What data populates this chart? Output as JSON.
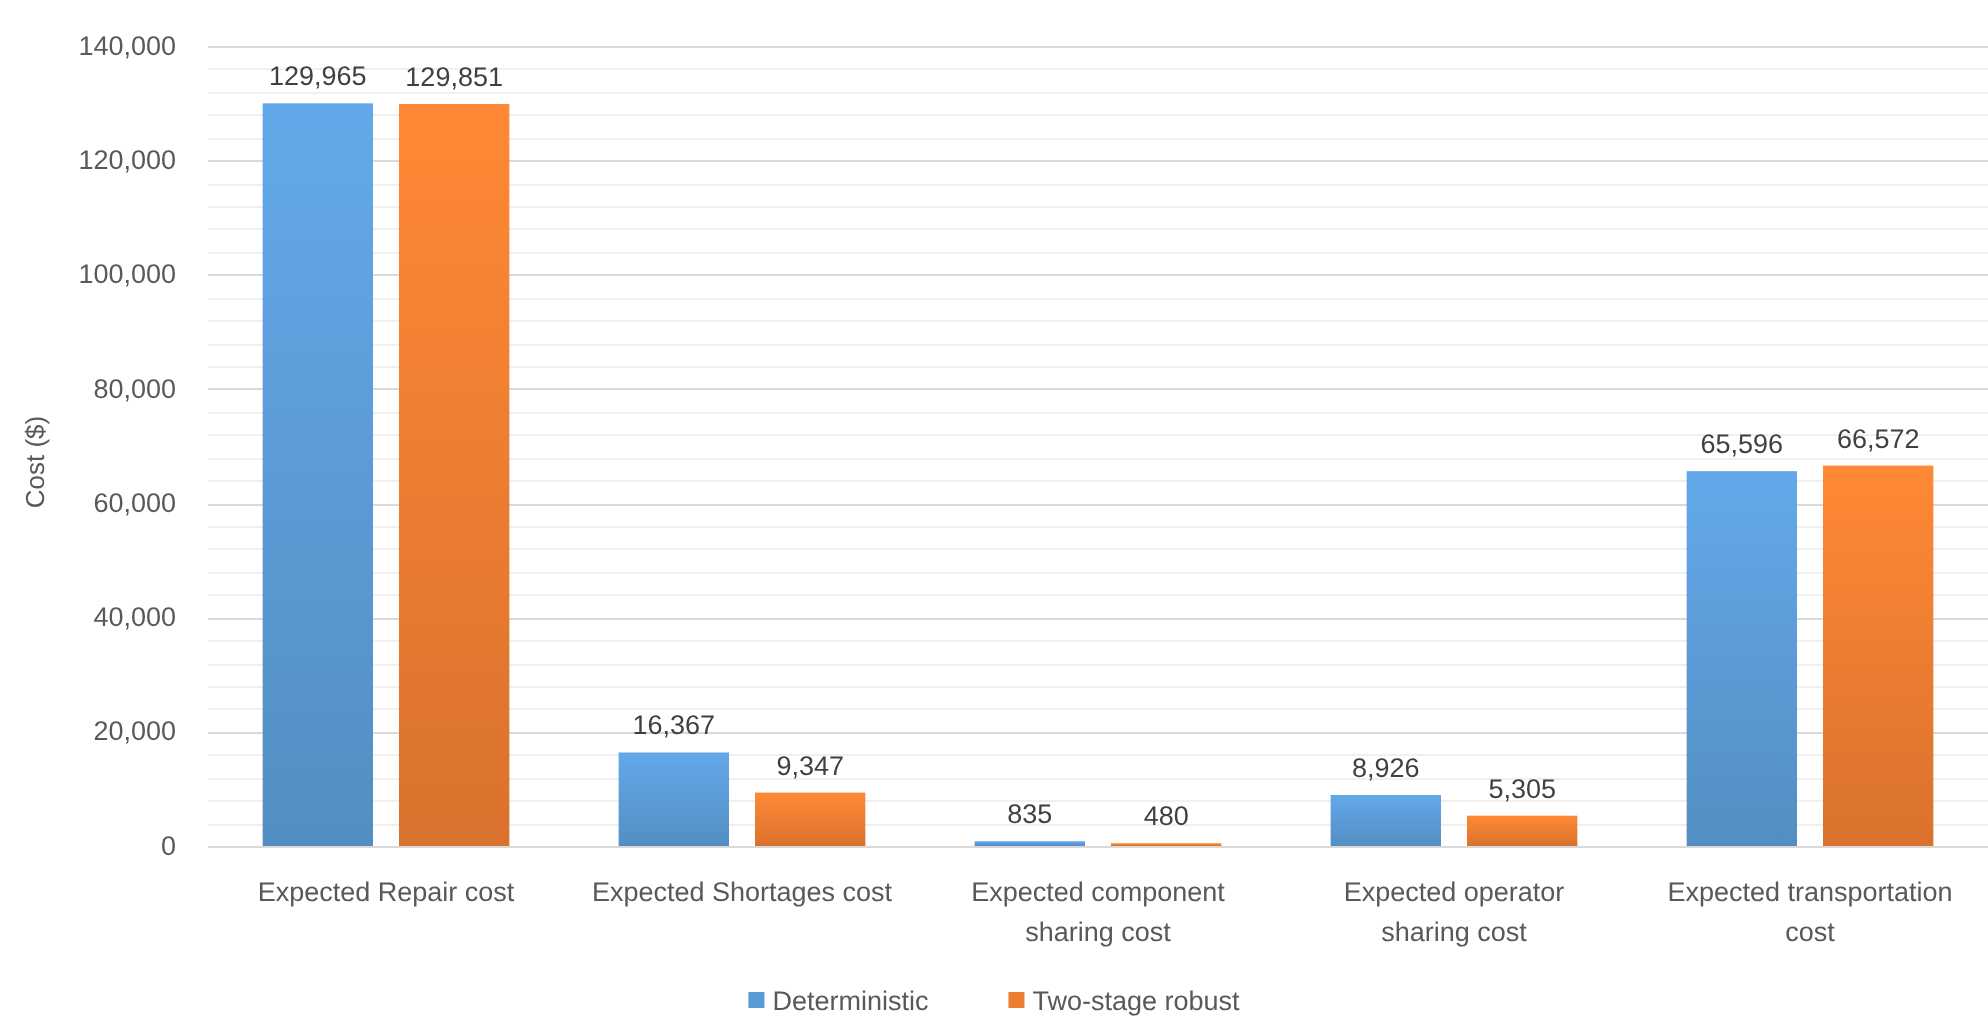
{
  "chart_data": {
    "type": "bar",
    "ylabel": "Cost ($)",
    "categories": [
      "Expected Repair cost",
      "Expected Shortages cost",
      "Expected component sharing cost",
      "Expected operator sharing cost",
      "Expected transportation cost"
    ],
    "series": [
      {
        "name": "Deterministic",
        "color": "#5b9bd5",
        "values": [
          129965,
          16367,
          835,
          8926,
          65596
        ],
        "value_labels": [
          "129,965",
          "16,367",
          "835",
          "8,926",
          "65,596"
        ]
      },
      {
        "name": "Two-stage robust",
        "color": "#ed7d31",
        "values": [
          129851,
          9347,
          480,
          5305,
          66572
        ],
        "value_labels": [
          "129,851",
          "9,347",
          "480",
          "5,305",
          "66,572"
        ]
      }
    ],
    "ylim": [
      0,
      140000
    ],
    "yticks": [
      {
        "value": 0,
        "label": "0"
      },
      {
        "value": 4000,
        "label": null
      },
      {
        "value": 8000,
        "label": null
      },
      {
        "value": 12000,
        "label": null
      },
      {
        "value": 16000,
        "label": null
      },
      {
        "value": 20000,
        "label": "20,000"
      },
      {
        "value": 24000,
        "label": null
      },
      {
        "value": 28000,
        "label": null
      },
      {
        "value": 32000,
        "label": null
      },
      {
        "value": 36000,
        "label": null
      },
      {
        "value": 40000,
        "label": "40,000"
      },
      {
        "value": 44000,
        "label": null
      },
      {
        "value": 48000,
        "label": null
      },
      {
        "value": 52000,
        "label": null
      },
      {
        "value": 56000,
        "label": null
      },
      {
        "value": 60000,
        "label": "60,000"
      },
      {
        "value": 64000,
        "label": null
      },
      {
        "value": 68000,
        "label": null
      },
      {
        "value": 72000,
        "label": null
      },
      {
        "value": 76000,
        "label": null
      },
      {
        "value": 80000,
        "label": "80,000"
      },
      {
        "value": 84000,
        "label": null
      },
      {
        "value": 88000,
        "label": null
      },
      {
        "value": 92000,
        "label": null
      },
      {
        "value": 96000,
        "label": null
      },
      {
        "value": 100000,
        "label": "100,000"
      },
      {
        "value": 104000,
        "label": null
      },
      {
        "value": 108000,
        "label": null
      },
      {
        "value": 112000,
        "label": null
      },
      {
        "value": 116000,
        "label": null
      },
      {
        "value": 120000,
        "label": "120,000"
      },
      {
        "value": 124000,
        "label": null
      },
      {
        "value": 128000,
        "label": null
      },
      {
        "value": 132000,
        "label": null
      },
      {
        "value": 136000,
        "label": null
      },
      {
        "value": 140000,
        "label": "140,000"
      }
    ],
    "grid": "y",
    "legend": "bottom"
  }
}
